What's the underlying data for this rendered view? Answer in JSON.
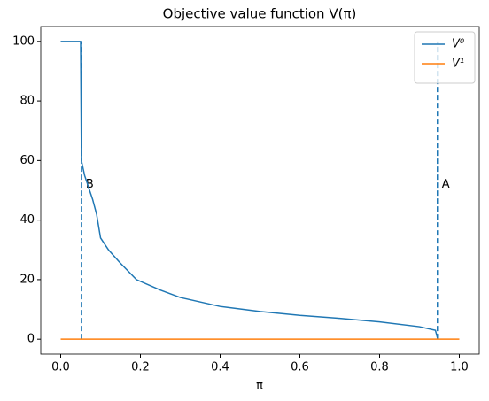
{
  "chart_data": {
    "type": "line",
    "title": "Objective value function V(π)",
    "xlabel": "π",
    "xlim": [
      -0.05,
      1.05
    ],
    "ylim": [
      -5,
      105
    ],
    "xticks": [
      {
        "value": 0,
        "label": "0.0"
      },
      0.2,
      0.4,
      0.6,
      0.8,
      {
        "value": 1,
        "label": "1.0"
      }
    ],
    "yticks": [
      0,
      20,
      40,
      60,
      80,
      100
    ],
    "legend": "upper right",
    "series": [
      {
        "name": "V⁰",
        "color": "#1f77b4",
        "x": [
          0,
          0.05,
          0.052,
          0.06,
          0.08,
          0.09,
          0.1,
          0.12,
          0.15,
          0.19,
          0.25,
          0.3,
          0.4,
          0.5,
          0.6,
          0.7,
          0.8,
          0.9,
          0.94,
          0.945
        ],
        "values": [
          100,
          100,
          60,
          55,
          47,
          42,
          34,
          30,
          25.5,
          20,
          16.5,
          14,
          11,
          9.3,
          8,
          7,
          5.8,
          4.2,
          3,
          0.5
        ]
      },
      {
        "name": "V¹",
        "color": "#ff7f0e",
        "x": [
          0,
          1
        ],
        "values": [
          0,
          0
        ]
      }
    ],
    "vlines": [
      {
        "x": 0.052,
        "ymin": 0,
        "ymax": 100,
        "label": "B",
        "label_y": 52
      },
      {
        "x": 0.945,
        "ymin": 0,
        "ymax": 100,
        "label": "A",
        "label_y": 52
      }
    ]
  }
}
